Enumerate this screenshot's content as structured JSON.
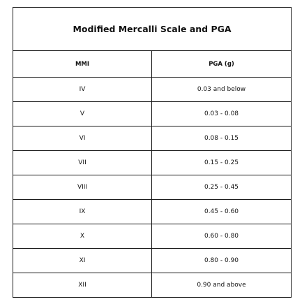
{
  "table": {
    "title": "Modified Mercalli Scale and PGA",
    "headers": [
      "MMI",
      "PGA (g)"
    ],
    "rows": [
      {
        "mmi": "IV",
        "pga": "0.03 and below"
      },
      {
        "mmi": "V",
        "pga": "0.03 - 0.08"
      },
      {
        "mmi": "VI",
        "pga": "0.08 - 0.15"
      },
      {
        "mmi": "VII",
        "pga": "0.15 - 0.25"
      },
      {
        "mmi": "VIII",
        "pga": "0.25 - 0.45"
      },
      {
        "mmi": "IX",
        "pga": "0.45 - 0.60"
      },
      {
        "mmi": "X",
        "pga": "0.60 - 0.80"
      },
      {
        "mmi": "XI",
        "pga": "0.80 - 0.90"
      },
      {
        "mmi": "XII",
        "pga": "0.90 and above"
      }
    ]
  }
}
